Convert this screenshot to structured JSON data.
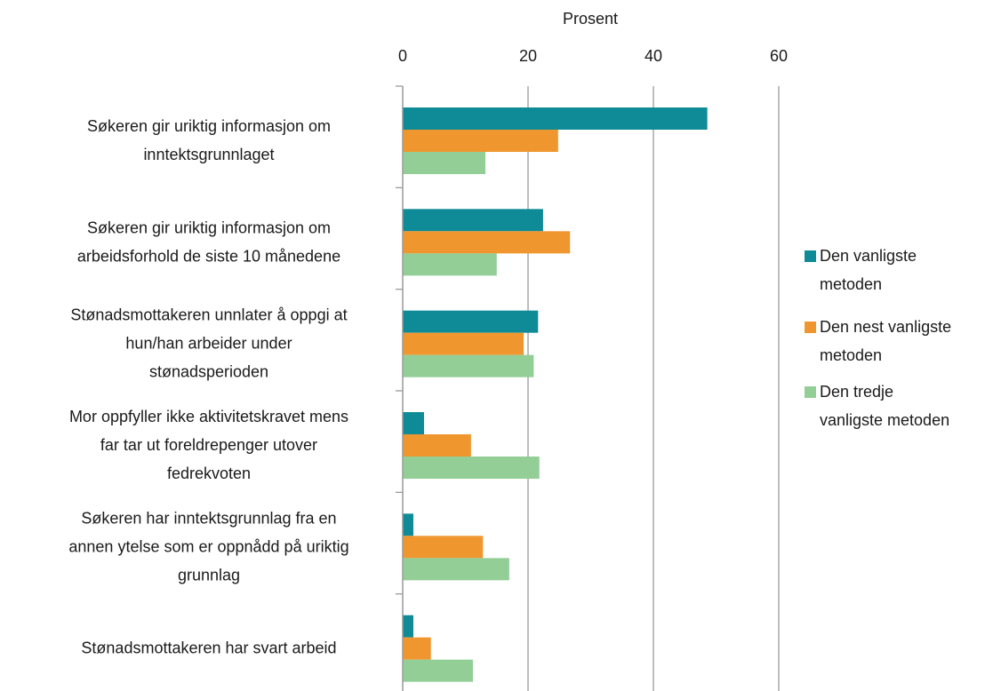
{
  "chart_data": {
    "type": "hbar",
    "x_label": "Prosent",
    "categories": [
      [
        "Søkeren gir uriktig informasjon om",
        "inntektsgrunnlaget"
      ],
      [
        "Søkeren gir uriktig informasjon om",
        "arbeidsforhold de siste 10 månedene"
      ],
      [
        "Stønadsmottakeren unnlater å oppgi at",
        "hun/han arbeider under",
        "stønadsperioden"
      ],
      [
        "Mor oppfyller ikke aktivitetskravet mens",
        "far tar ut foreldrepenger utover",
        "fedrekvoten"
      ],
      [
        "Søkeren har inntektsgrunnlag fra en",
        "annen ytelse som er oppnådd på uriktig",
        "grunnlag"
      ],
      [
        "Stønadsmottakeren har svart arbeid"
      ]
    ],
    "series": [
      {
        "name": "Den vanligste metoden",
        "color": "#0e8b96",
        "values": [
          48.6,
          22.4,
          21.6,
          3.4,
          1.7,
          1.7
        ]
      },
      {
        "name": "Den nest vanligste metoden",
        "color": "#f0962e",
        "values": [
          24.8,
          26.7,
          19.3,
          10.9,
          12.8,
          4.5
        ]
      },
      {
        "name": "Den tredje vanligste metoden",
        "color": "#92ce96",
        "values": [
          13.2,
          15.0,
          20.9,
          21.8,
          17.0,
          11.2
        ]
      }
    ],
    "xlim": [
      0,
      60
    ],
    "xticks": [
      0,
      20,
      40,
      60
    ],
    "grid": true,
    "legend": "right"
  }
}
